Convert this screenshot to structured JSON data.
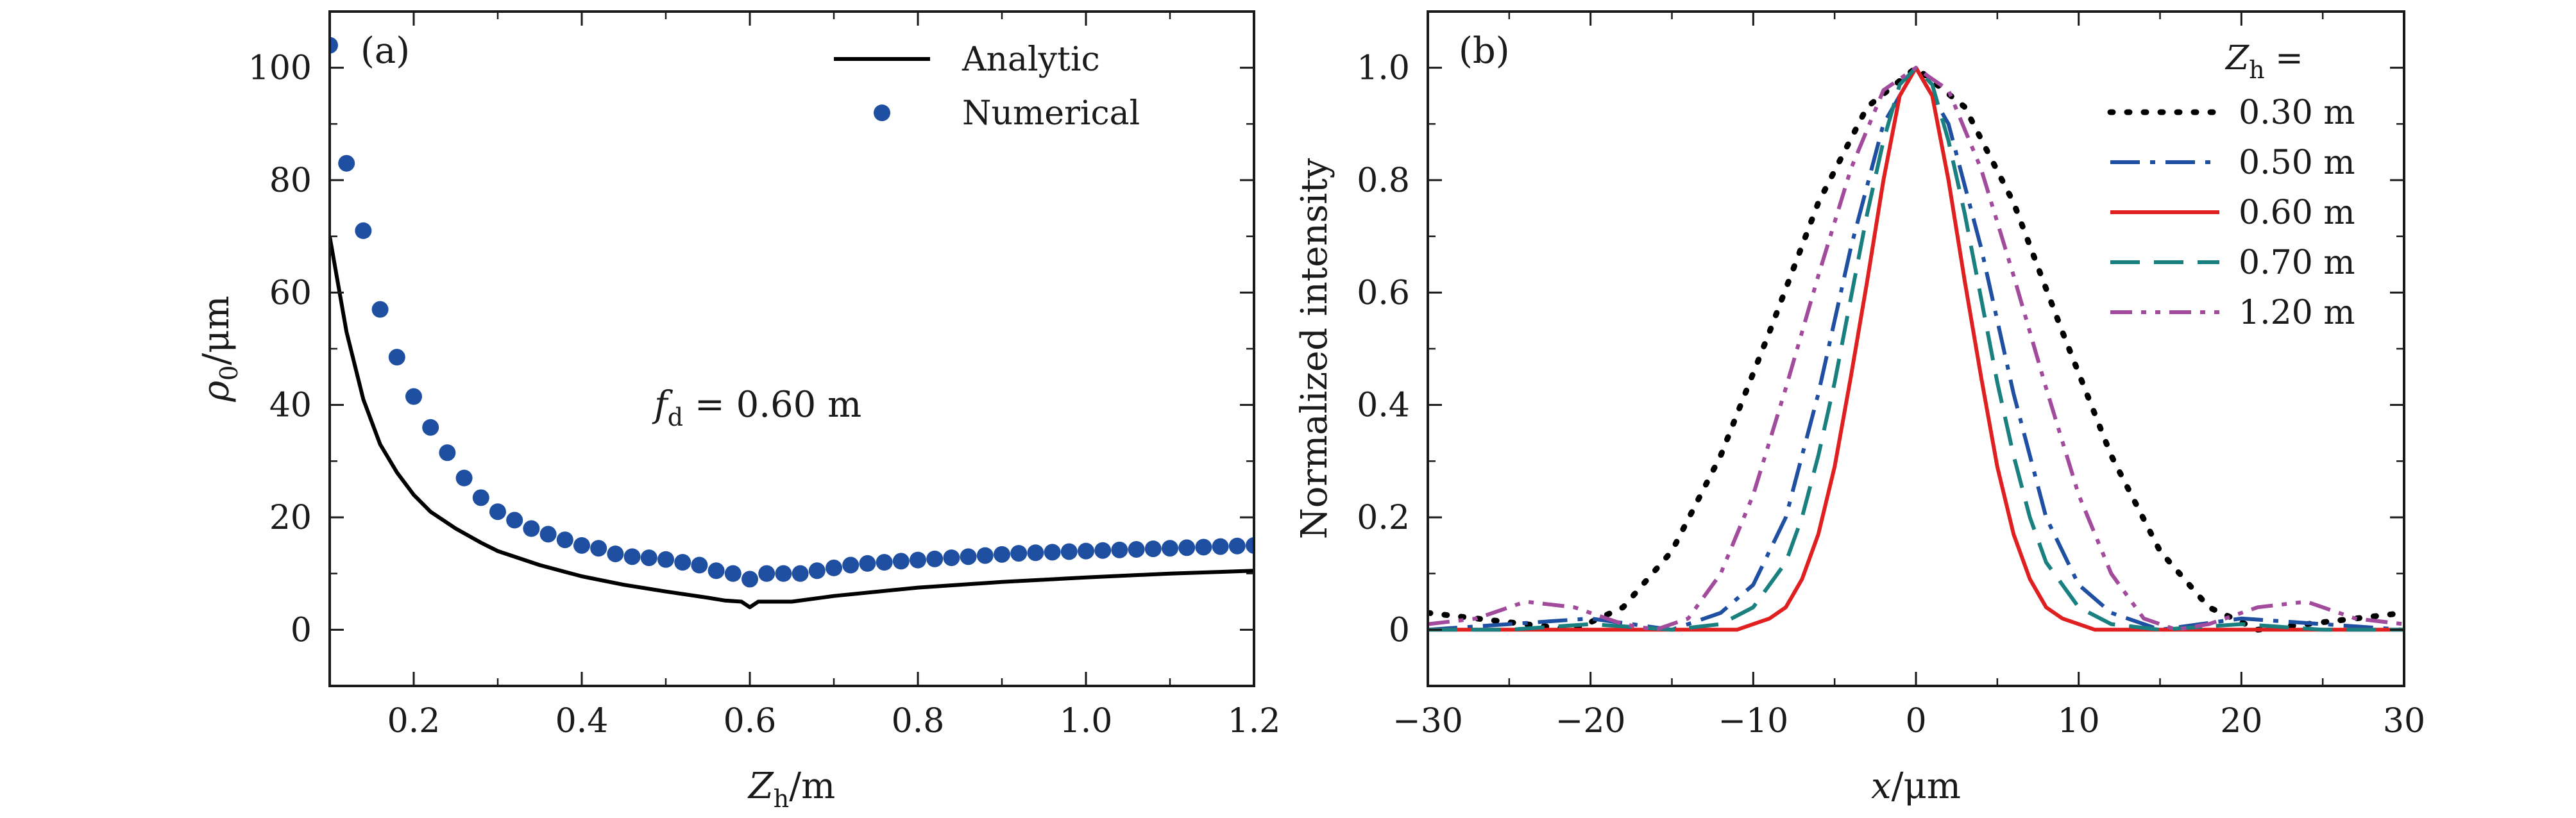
{
  "chart_data": [
    {
      "type": "line",
      "panel_label": "(a)",
      "xlabel": {
        "main": "Z",
        "sub": "h",
        "rest": "/m"
      },
      "ylabel": {
        "main": "ρ",
        "sub": "0",
        "rest": "/μm"
      },
      "xlim": [
        0.1,
        1.2
      ],
      "ylim": [
        -10,
        110
      ],
      "xticks": [
        0.2,
        0.4,
        0.6,
        0.8,
        1.0,
        1.2
      ],
      "xtick_labels": [
        "0.2",
        "0.4",
        "0.6",
        "0.8",
        "1.0",
        "1.2"
      ],
      "yticks": [
        0,
        20,
        40,
        60,
        80,
        100
      ],
      "ytick_labels": [
        "0",
        "20",
        "40",
        "60",
        "80",
        "100"
      ],
      "annotation": {
        "main": "f",
        "sub": "d",
        "rest": " = 0.60 m"
      },
      "legend_position": "top-right",
      "series": [
        {
          "name": "Analytic",
          "style": "solid-line",
          "color": "#000000",
          "x": [
            0.1,
            0.12,
            0.14,
            0.16,
            0.18,
            0.2,
            0.22,
            0.25,
            0.28,
            0.3,
            0.35,
            0.4,
            0.45,
            0.5,
            0.55,
            0.57,
            0.59,
            0.6,
            0.61,
            0.63,
            0.65,
            0.7,
            0.8,
            0.9,
            1.0,
            1.1,
            1.2
          ],
          "y": [
            70,
            53,
            41,
            33,
            28,
            24,
            21,
            18,
            15.5,
            14,
            11.5,
            9.5,
            8,
            6.8,
            5.7,
            5.2,
            5.0,
            4.0,
            5.0,
            5.0,
            5.0,
            6.0,
            7.5,
            8.5,
            9.3,
            10.0,
            10.5
          ]
        },
        {
          "name": "Numerical",
          "style": "markers",
          "color": "#1f4fa0",
          "x": [
            0.1,
            0.12,
            0.14,
            0.16,
            0.18,
            0.2,
            0.22,
            0.24,
            0.26,
            0.28,
            0.3,
            0.32,
            0.34,
            0.36,
            0.38,
            0.4,
            0.42,
            0.44,
            0.46,
            0.48,
            0.5,
            0.52,
            0.54,
            0.56,
            0.58,
            0.6,
            0.62,
            0.64,
            0.66,
            0.68,
            0.7,
            0.72,
            0.74,
            0.76,
            0.78,
            0.8,
            0.82,
            0.84,
            0.86,
            0.88,
            0.9,
            0.92,
            0.94,
            0.96,
            0.98,
            1.0,
            1.02,
            1.04,
            1.06,
            1.08,
            1.1,
            1.12,
            1.14,
            1.16,
            1.18,
            1.2
          ],
          "y": [
            104,
            83,
            71,
            57,
            48.5,
            41.5,
            36,
            31.5,
            27,
            23.5,
            21,
            19.5,
            18,
            17,
            16,
            15,
            14.5,
            13.5,
            13,
            12.8,
            12.5,
            12,
            11.5,
            10.5,
            10,
            9,
            10,
            10,
            10,
            10.5,
            11,
            11.5,
            11.8,
            12,
            12.2,
            12.4,
            12.6,
            12.8,
            13,
            13.2,
            13.4,
            13.6,
            13.7,
            13.8,
            13.9,
            14,
            14.1,
            14.2,
            14.3,
            14.4,
            14.5,
            14.6,
            14.7,
            14.8,
            14.9,
            15
          ]
        }
      ]
    },
    {
      "type": "line",
      "panel_label": "(b)",
      "xlabel": {
        "main": "x",
        "sub": "",
        "rest": "/μm"
      },
      "ylabel": "Normalized intensity",
      "xlim": [
        -30,
        30
      ],
      "ylim": [
        -0.1,
        1.1
      ],
      "xticks": [
        -30,
        -20,
        -10,
        0,
        10,
        20,
        30
      ],
      "xtick_labels": [
        "−30",
        "−20",
        "−10",
        "0",
        "10",
        "20",
        "30"
      ],
      "yticks": [
        0,
        0.2,
        0.4,
        0.6,
        0.8,
        1.0
      ],
      "ytick_labels": [
        "0",
        "0.2",
        "0.4",
        "0.6",
        "0.8",
        "1.0"
      ],
      "legend_title": {
        "main": "Z",
        "sub": "h",
        "rest": " ="
      },
      "legend_position": "top-right",
      "series": [
        {
          "name": "0.30 m",
          "style": "dotted",
          "color": "#000000",
          "x": [
            -30,
            -27,
            -24,
            -21,
            -18,
            -15,
            -12,
            -9,
            -6,
            -3,
            0,
            3,
            6,
            9,
            12,
            15,
            18,
            21,
            24,
            27,
            30
          ],
          "y": [
            0.03,
            0.02,
            0.01,
            0.0,
            0.04,
            0.14,
            0.31,
            0.53,
            0.76,
            0.93,
            1.0,
            0.93,
            0.76,
            0.53,
            0.31,
            0.14,
            0.04,
            0.0,
            0.01,
            0.02,
            0.03
          ]
        },
        {
          "name": "0.50 m",
          "style": "dash-dot",
          "color": "#1f4fa0",
          "x": [
            -30,
            -25,
            -20,
            -15,
            -12,
            -10,
            -8,
            -6,
            -4,
            -2,
            0,
            2,
            4,
            6,
            8,
            10,
            12,
            15,
            20,
            25,
            30
          ],
          "y": [
            0.0,
            0.01,
            0.02,
            0.0,
            0.03,
            0.08,
            0.2,
            0.42,
            0.68,
            0.9,
            1.0,
            0.9,
            0.68,
            0.42,
            0.2,
            0.08,
            0.03,
            0.0,
            0.02,
            0.01,
            0.0
          ]
        },
        {
          "name": "0.60 m",
          "style": "solid",
          "color": "#e02020",
          "x": [
            -30,
            -20,
            -15,
            -11,
            -10,
            -9,
            -8,
            -7,
            -6,
            -5,
            -4,
            -3,
            -2,
            -1,
            0,
            1,
            2,
            3,
            4,
            5,
            6,
            7,
            8,
            9,
            10,
            11,
            15,
            20,
            30
          ],
          "y": [
            0,
            0,
            0,
            0,
            0.01,
            0.02,
            0.04,
            0.09,
            0.17,
            0.29,
            0.45,
            0.62,
            0.8,
            0.95,
            1.0,
            0.95,
            0.8,
            0.62,
            0.45,
            0.29,
            0.17,
            0.09,
            0.04,
            0.02,
            0.01,
            0,
            0,
            0,
            0
          ]
        },
        {
          "name": "0.70 m",
          "style": "dashed",
          "color": "#1a7f7f",
          "x": [
            -30,
            -25,
            -20,
            -15,
            -12,
            -10,
            -8,
            -7,
            -6,
            -5,
            -4,
            -3,
            -2,
            -1,
            0,
            1,
            2,
            3,
            4,
            5,
            6,
            7,
            8,
            10,
            12,
            15,
            20,
            25,
            30
          ],
          "y": [
            0.0,
            0.0,
            0.01,
            0.0,
            0.01,
            0.04,
            0.12,
            0.2,
            0.31,
            0.44,
            0.59,
            0.74,
            0.87,
            0.97,
            1.0,
            0.97,
            0.87,
            0.74,
            0.59,
            0.44,
            0.31,
            0.2,
            0.12,
            0.04,
            0.01,
            0.0,
            0.01,
            0.0,
            0.0
          ]
        },
        {
          "name": "1.20 m",
          "style": "dash-dot-dot",
          "color": "#a24a9c",
          "x": [
            -30,
            -27,
            -24,
            -21,
            -18,
            -16,
            -14,
            -12,
            -10,
            -8,
            -6,
            -4,
            -2,
            0,
            2,
            4,
            6,
            8,
            10,
            12,
            14,
            16,
            18,
            21,
            24,
            27,
            30
          ],
          "y": [
            0.01,
            0.02,
            0.05,
            0.04,
            0.01,
            0.0,
            0.02,
            0.1,
            0.24,
            0.43,
            0.63,
            0.82,
            0.96,
            1.0,
            0.96,
            0.82,
            0.63,
            0.43,
            0.24,
            0.1,
            0.02,
            0.0,
            0.01,
            0.04,
            0.05,
            0.02,
            0.01
          ]
        }
      ]
    }
  ]
}
